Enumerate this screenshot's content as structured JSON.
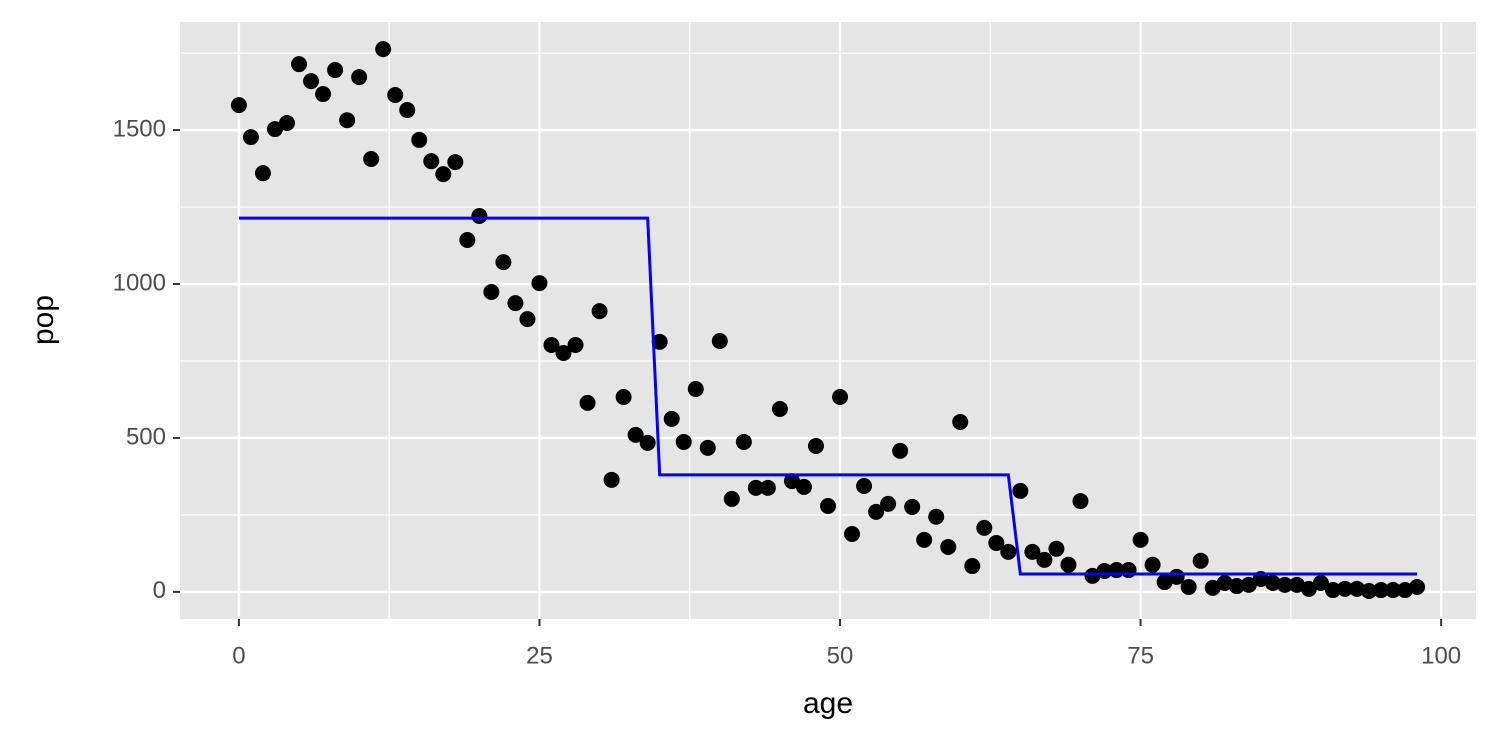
{
  "chart_data": {
    "type": "scatter",
    "x_label": "age",
    "y_label": "pop",
    "xlim": [
      -4.9,
      102.9
    ],
    "xticks": [
      0,
      25,
      50,
      75,
      100
    ],
    "xminorticks": [
      12.5,
      37.5,
      62.5,
      87.5
    ],
    "ylim": [
      -88,
      1851
    ],
    "yticks": [
      0,
      500,
      1000,
      1500
    ],
    "yminorticks": [
      250,
      750,
      1250,
      1750
    ],
    "grid": true,
    "background": "#e5e5e5",
    "series": [
      {
        "type": "scatter",
        "color": "#000000",
        "x": [
          0,
          1,
          2,
          3,
          4,
          5,
          6,
          7,
          8,
          9,
          10,
          11,
          12,
          13,
          14,
          15,
          16,
          17,
          18,
          19,
          20,
          21,
          22,
          23,
          24,
          25,
          26,
          27,
          28,
          29,
          30,
          31,
          32,
          33,
          34,
          35,
          36,
          37,
          38,
          39,
          40,
          41,
          42,
          43,
          44,
          45,
          46,
          47,
          48,
          49,
          50,
          51,
          52,
          53,
          54,
          55,
          56,
          57,
          58,
          59,
          60,
          61,
          62,
          63,
          64,
          65,
          66,
          67,
          68,
          69,
          70,
          71,
          72,
          73,
          74,
          75,
          76,
          77,
          78,
          79,
          80,
          81,
          82,
          83,
          84,
          85,
          86,
          87,
          88,
          89,
          90,
          91,
          92,
          93,
          94,
          95,
          96,
          97,
          98
        ],
        "values": [
          1581,
          1477,
          1360,
          1503,
          1523,
          1714,
          1659,
          1617,
          1695,
          1532,
          1672,
          1406,
          1763,
          1614,
          1565,
          1468,
          1399,
          1357,
          1396,
          1143,
          1221,
          974,
          1071,
          938,
          886,
          1003,
          802,
          776,
          802,
          614,
          912,
          364,
          633,
          510,
          484,
          812,
          562,
          487,
          659,
          468,
          815,
          302,
          487,
          338,
          338,
          594,
          360,
          341,
          474,
          279,
          633,
          188,
          344,
          260,
          286,
          458,
          276,
          169,
          244,
          146,
          552,
          84,
          208,
          159,
          130,
          328,
          130,
          104,
          140,
          88,
          295,
          52,
          68,
          71,
          71,
          169,
          88,
          32,
          49,
          16,
          101,
          13,
          29,
          19,
          23,
          42,
          29,
          23,
          23,
          10,
          29,
          6,
          10,
          10,
          3,
          6,
          6,
          6,
          16
        ]
      },
      {
        "type": "line",
        "color": "#0000ff",
        "x": [
          0,
          34,
          35,
          64,
          65,
          98
        ],
        "values": [
          1214,
          1214,
          380,
          380,
          58,
          58
        ]
      }
    ]
  }
}
